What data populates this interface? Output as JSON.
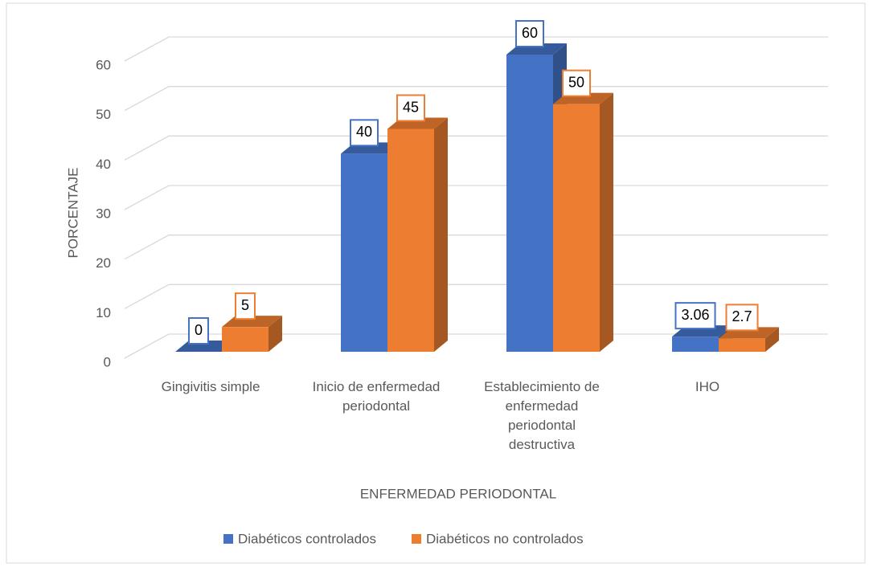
{
  "chart_data": {
    "type": "bar3d",
    "categories": [
      "Gingivitis simple",
      "Inicio de enfermedad periodontal",
      "Establecimiento de enfermedad periodontal destructiva",
      "IHO"
    ],
    "series": [
      {
        "name": "Diabéticos controlados",
        "color": "#4472c4",
        "values": [
          0,
          40,
          60,
          3.06
        ]
      },
      {
        "name": "Diabéticos no controlados",
        "color": "#ed7d31",
        "values": [
          5,
          45,
          50,
          2.7
        ]
      }
    ],
    "ylabel": "PORCENTAJE",
    "xlabel": "ENFERMEDAD PERIODONTAL",
    "ylim": [
      0,
      60
    ],
    "yticks": [
      0,
      10,
      20,
      30,
      40,
      50,
      60
    ],
    "grid": true,
    "legend": "bottom"
  }
}
